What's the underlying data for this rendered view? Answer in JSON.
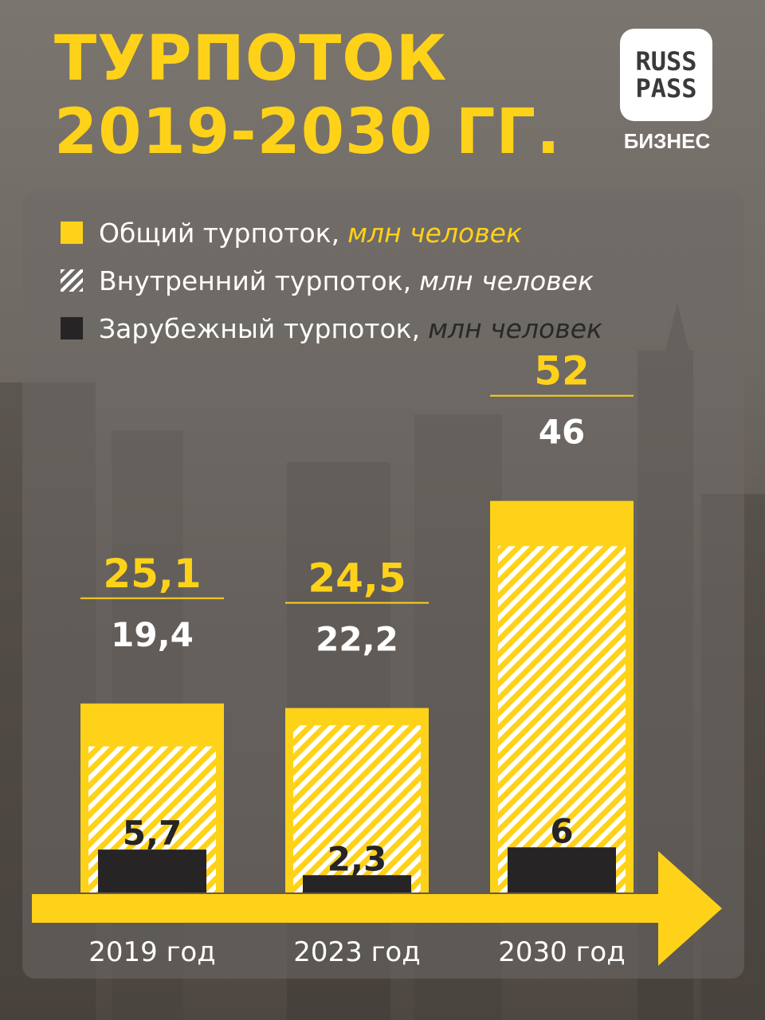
{
  "header": {
    "title_line1": "ТУРПОТОК",
    "title_line2": "2019-2030 ГГ."
  },
  "logo": {
    "line1": "RUSS",
    "line2": "PASS",
    "subtitle": "БИЗНЕС"
  },
  "legend": [
    {
      "label": "Общий турпоток,",
      "unit": "млн человек",
      "unit_color": "yellow"
    },
    {
      "label": "Внутренний турпоток,",
      "unit": "млн человек",
      "unit_color": "white"
    },
    {
      "label": "Зарубежный турпоток,",
      "unit": "млн человек",
      "unit_color": "dark"
    }
  ],
  "colors": {
    "accent": "#ffd21a",
    "dark": "#262424",
    "text": "#ffffff"
  },
  "chart_data": {
    "type": "bar",
    "categories": [
      "2019 год",
      "2023 год",
      "2030 год"
    ],
    "series": [
      {
        "name": "Общий турпоток",
        "values": [
          25.1,
          24.5,
          52
        ],
        "labels": [
          "25,1",
          "24,5",
          "52"
        ]
      },
      {
        "name": "Внутренний турпоток",
        "values": [
          19.4,
          22.2,
          46
        ],
        "labels": [
          "19,4",
          "22,2",
          "46"
        ]
      },
      {
        "name": "Зарубежный турпоток",
        "values": [
          5.7,
          2.3,
          6
        ],
        "labels": [
          "5,7",
          "2,3",
          "6"
        ]
      }
    ],
    "unit": "млн человек",
    "legend_position": "top-left",
    "grid": false
  }
}
